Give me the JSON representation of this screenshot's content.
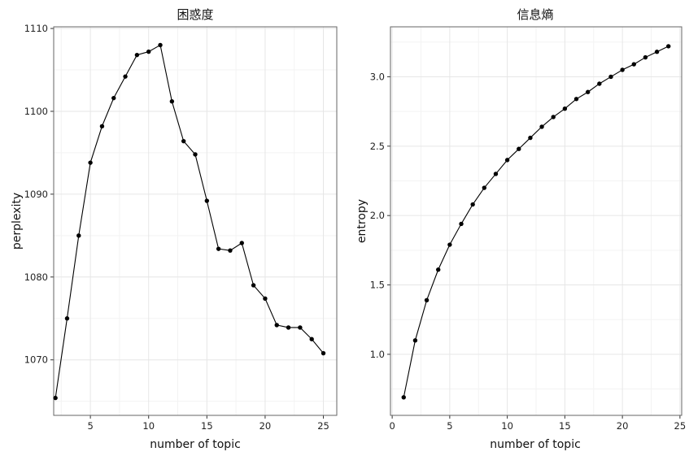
{
  "chart_data": [
    {
      "type": "line",
      "title": "困惑度",
      "xlabel": "number of topic",
      "ylabel": "perplexity",
      "xlim": [
        1.85,
        26.15
      ],
      "ylim": [
        1063.3,
        1110.2
      ],
      "x_ticks": [
        5,
        10,
        15,
        20,
        25
      ],
      "y_ticks": [
        1070,
        1080,
        1090,
        1100,
        1110
      ],
      "x_tick_labels": [
        "5",
        "10",
        "15",
        "20",
        "25"
      ],
      "y_tick_labels": [
        "1070",
        "1080",
        "1090",
        "1100",
        "1110"
      ],
      "grid": true,
      "legend": "none",
      "series": [
        {
          "x": [
            2,
            3,
            4,
            5,
            6,
            7,
            8,
            9,
            10,
            11,
            12,
            13,
            14,
            15,
            16,
            17,
            18,
            19,
            20,
            21,
            22,
            23,
            24,
            25
          ],
          "y": [
            1065.4,
            1075.0,
            1085.0,
            1093.8,
            1098.2,
            1101.6,
            1104.2,
            1106.8,
            1107.2,
            1108.0,
            1101.2,
            1096.4,
            1094.8,
            1089.2,
            1083.4,
            1083.2,
            1084.1,
            1079.0,
            1077.4,
            1074.2,
            1073.9,
            1073.9,
            1072.5,
            1070.8
          ]
        }
      ]
    },
    {
      "type": "line",
      "title": "信息熵",
      "xlabel": "number of topic",
      "ylabel": "entropy",
      "xlim": [
        -0.15,
        25.15
      ],
      "ylim": [
        0.56,
        3.36
      ],
      "x_ticks": [
        0,
        5,
        10,
        15,
        20,
        25
      ],
      "y_ticks": [
        1.0,
        1.5,
        2.0,
        2.5,
        3.0
      ],
      "x_tick_labels": [
        "0",
        "5",
        "10",
        "15",
        "20",
        "25"
      ],
      "y_tick_labels": [
        "1.0",
        "1.5",
        "2.0",
        "2.5",
        "3.0"
      ],
      "grid": true,
      "legend": "none",
      "series": [
        {
          "x": [
            1,
            2,
            3,
            4,
            5,
            6,
            7,
            8,
            9,
            10,
            11,
            12,
            13,
            14,
            15,
            16,
            17,
            18,
            19,
            20,
            21,
            22,
            23,
            24
          ],
          "y": [
            0.69,
            1.1,
            1.39,
            1.61,
            1.79,
            1.94,
            2.08,
            2.2,
            2.3,
            2.4,
            2.48,
            2.56,
            2.64,
            2.71,
            2.77,
            2.84,
            2.89,
            2.95,
            3.0,
            3.05,
            3.09,
            3.14,
            3.18,
            3.22
          ]
        }
      ]
    }
  ]
}
